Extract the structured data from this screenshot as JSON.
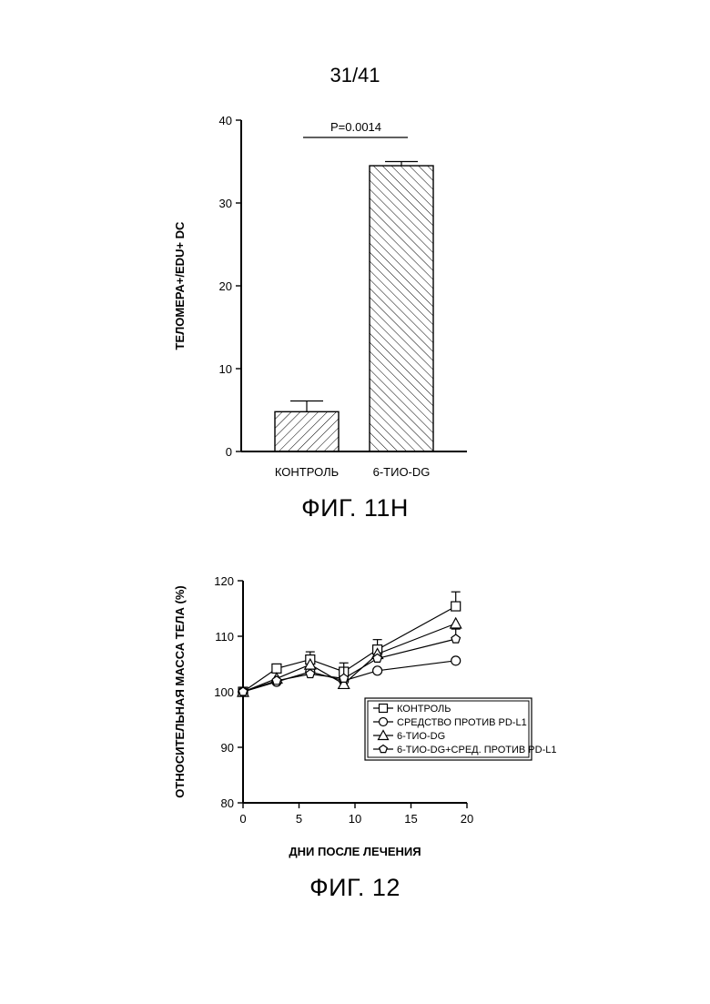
{
  "page": {
    "number": "31/41"
  },
  "figures": [
    {
      "caption": "ФИГ. 11H"
    },
    {
      "caption": "ФИГ. 12"
    }
  ],
  "chart_data": [
    {
      "type": "bar",
      "categories": [
        "КОНТРОЛЬ",
        "6-ТИО-DG"
      ],
      "values": [
        4.8,
        34.5
      ],
      "errors": [
        1.3,
        0.5
      ],
      "ylabel": "ТЕЛОМЕРА+/EDU+ DC",
      "xlabel": "",
      "ylim": [
        0,
        40
      ],
      "yticks": [
        0,
        10,
        20,
        30,
        40
      ],
      "annotation": "P=0.0014",
      "fill": "diagonal-hatch"
    },
    {
      "type": "line",
      "x": [
        0,
        3,
        6,
        9,
        12,
        19
      ],
      "series": [
        {
          "name": "КОНТРОЛЬ",
          "marker": "square",
          "values": [
            100,
            104.2,
            105.8,
            103.6,
            107.6,
            115.4
          ],
          "errors": [
            0,
            0,
            1.4,
            0,
            1.8,
            2.6
          ]
        },
        {
          "name": "СРЕДСТВО ПРОТИВ PD-L1",
          "marker": "circle",
          "values": [
            100,
            101.8,
            103.6,
            102.0,
            103.8,
            105.6
          ],
          "errors": [
            0,
            0,
            0,
            0,
            0,
            0
          ]
        },
        {
          "name": "6-ТИО-DG",
          "marker": "triangle",
          "values": [
            100,
            102.4,
            104.9,
            101.4,
            106.8,
            112.3
          ],
          "errors": [
            0,
            0,
            0,
            0,
            0,
            0
          ]
        },
        {
          "name": "6-ТИО-DG+СРЕД. ПРОТИВ PD-L1",
          "marker": "pentagon",
          "values": [
            100,
            102.0,
            103.2,
            102.4,
            106.0,
            109.5
          ],
          "errors": [
            0,
            0,
            0,
            2.8,
            0,
            1.8
          ]
        }
      ],
      "xlabel": "ДНИ ПОСЛЕ ЛЕЧЕНИЯ",
      "ylabel": "ОТНОСИТЕЛЬНАЯ МАССА ТЕЛА (%)",
      "xlim": [
        0,
        20
      ],
      "ylim": [
        80,
        120
      ],
      "xticks": [
        0,
        5,
        10,
        15,
        20
      ],
      "yticks": [
        80,
        90,
        100,
        110,
        120
      ],
      "legend": "inside-lower-right"
    }
  ]
}
